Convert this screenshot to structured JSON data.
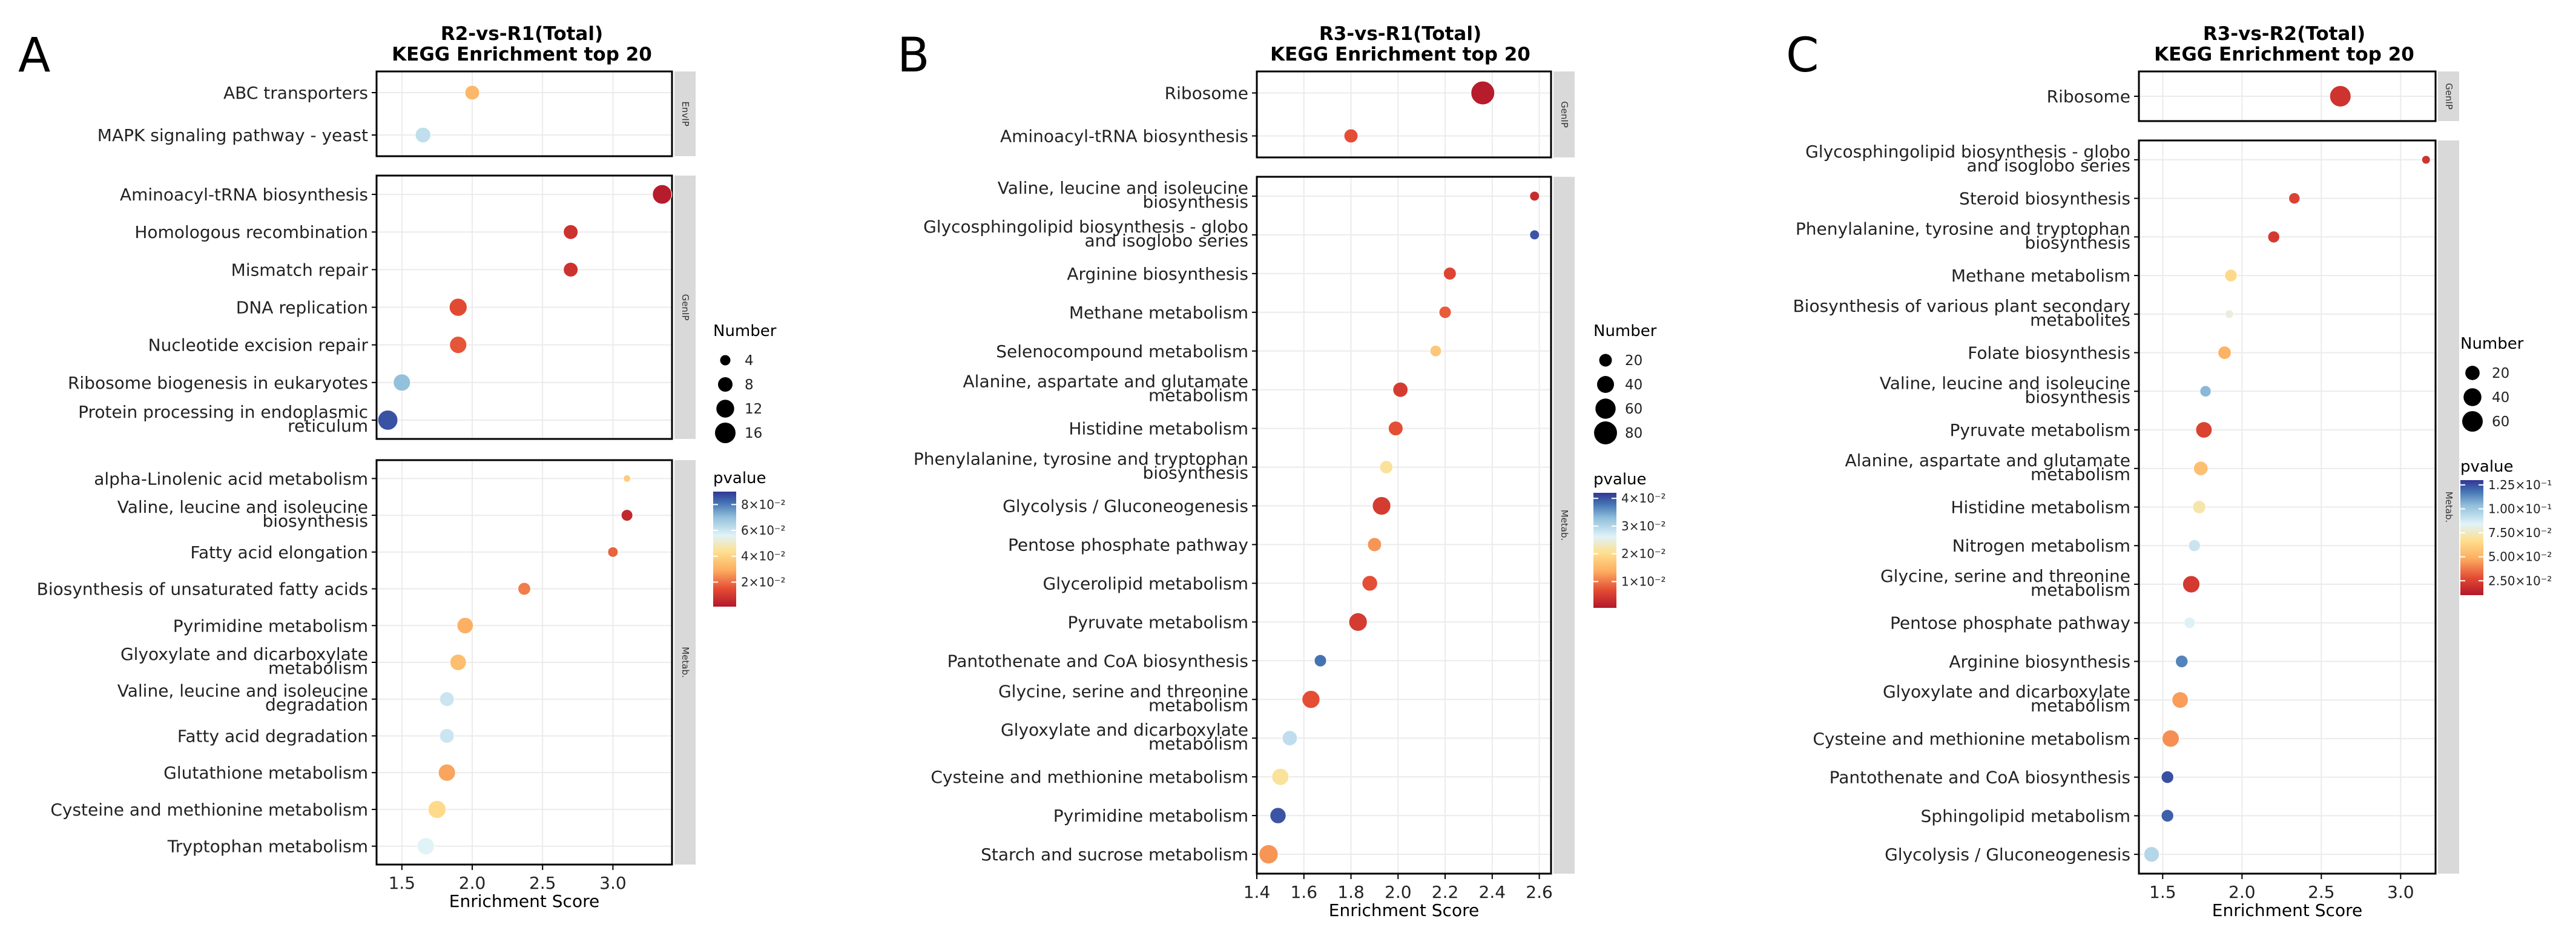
{
  "colors": {
    "panel_strip": "#d9d9d9",
    "grid": "#ebebeb",
    "axis": "#000000",
    "point_stroke": "#ffffff"
  },
  "chart_data": [
    {
      "type": "scatter",
      "panel_label": "A",
      "title": "R2-vs-R1(Total)",
      "subtitle": "KEGG Enrichment top 20",
      "xlabel": "Enrichment Score",
      "xlim": [
        1.32,
        3.42
      ],
      "x_ticks": [
        1.5,
        2.0,
        2.5,
        3.0
      ],
      "x_tick_labels": [
        "1.5",
        "2.0",
        "2.5",
        "3.0"
      ],
      "facets": [
        {
          "strip": "EnvIP",
          "terms": [
            {
              "label": [
                "ABC transporters"
              ],
              "x": 2.0,
              "number": 8,
              "pvalue": 0.032
            },
            {
              "label": [
                "MAPK signaling pathway - yeast"
              ],
              "x": 1.65,
              "number": 9,
              "pvalue": 0.062
            }
          ]
        },
        {
          "strip": "GenIP",
          "terms": [
            {
              "label": [
                "Aminoacyl-tRNA biosynthesis"
              ],
              "x": 3.35,
              "number": 14,
              "pvalue": 0.002
            },
            {
              "label": [
                "Homologous recombination"
              ],
              "x": 2.7,
              "number": 8,
              "pvalue": 0.008
            },
            {
              "label": [
                "Mismatch repair"
              ],
              "x": 2.7,
              "number": 8,
              "pvalue": 0.008
            },
            {
              "label": [
                "DNA replication"
              ],
              "x": 1.9,
              "number": 12,
              "pvalue": 0.014
            },
            {
              "label": [
                "Nucleotide excision repair"
              ],
              "x": 1.9,
              "number": 11,
              "pvalue": 0.016
            },
            {
              "label": [
                "Ribosome biogenesis in eukaryotes"
              ],
              "x": 1.5,
              "number": 11,
              "pvalue": 0.07
            },
            {
              "label": [
                "Protein processing in endoplasmic",
                "reticulum"
              ],
              "x": 1.4,
              "number": 15,
              "pvalue": 0.086
            }
          ]
        },
        {
          "strip": "Metab.",
          "terms": [
            {
              "label": [
                "alpha-Linolenic acid metabolism"
              ],
              "x": 3.1,
              "number": 2,
              "pvalue": 0.038
            },
            {
              "label": [
                "Valine, leucine and isoleucine",
                "biosynthesis"
              ],
              "x": 3.1,
              "number": 5,
              "pvalue": 0.005
            },
            {
              "label": [
                "Fatty acid elongation"
              ],
              "x": 3.0,
              "number": 4,
              "pvalue": 0.018
            },
            {
              "label": [
                "Biosynthesis of unsaturated fatty acids"
              ],
              "x": 2.37,
              "number": 6,
              "pvalue": 0.022
            },
            {
              "label": [
                "Pyrimidine metabolism"
              ],
              "x": 1.95,
              "number": 10,
              "pvalue": 0.03
            },
            {
              "label": [
                "Glyoxylate and dicarboxylate",
                "metabolism"
              ],
              "x": 1.9,
              "number": 10,
              "pvalue": 0.034
            },
            {
              "label": [
                "Valine, leucine and isoleucine",
                "degradation"
              ],
              "x": 1.82,
              "number": 8,
              "pvalue": 0.06
            },
            {
              "label": [
                "Fatty acid degradation"
              ],
              "x": 1.82,
              "number": 8,
              "pvalue": 0.06
            },
            {
              "label": [
                "Glutathione metabolism"
              ],
              "x": 1.82,
              "number": 11,
              "pvalue": 0.028
            },
            {
              "label": [
                "Cysteine and methionine metabolism"
              ],
              "x": 1.75,
              "number": 12,
              "pvalue": 0.042
            },
            {
              "label": [
                "Tryptophan metabolism"
              ],
              "x": 1.67,
              "number": 11,
              "pvalue": 0.056
            }
          ]
        }
      ],
      "size_legend": {
        "title": "Number",
        "values": [
          4,
          8,
          12,
          16
        ]
      },
      "color_legend": {
        "title": "pvalue",
        "breaks": [
          0.08,
          0.06,
          0.04,
          0.02
        ],
        "labels": [
          "8×10⁻²",
          "6×10⁻²",
          "4×10⁻²",
          "2×10⁻²"
        ],
        "min": 0.001,
        "max": 0.09
      }
    },
    {
      "type": "scatter",
      "panel_label": "B",
      "title": "R3-vs-R1(Total)",
      "subtitle": "KEGG Enrichment top 20",
      "xlabel": "Enrichment Score",
      "xlim": [
        1.4,
        2.65
      ],
      "x_ticks": [
        1.4,
        1.6,
        1.8,
        2.0,
        2.2,
        2.4,
        2.6
      ],
      "x_tick_labels": [
        "1.4",
        "1.6",
        "1.8",
        "2.0",
        "2.2",
        "2.4",
        "2.6"
      ],
      "facets": [
        {
          "strip": "GenIP",
          "terms": [
            {
              "label": [
                "Ribosome"
              ],
              "x": 2.36,
              "number": 85,
              "pvalue": 0.001
            },
            {
              "label": [
                "Aminoacyl-tRNA biosynthesis"
              ],
              "x": 1.8,
              "number": 25,
              "pvalue": 0.007
            }
          ]
        },
        {
          "strip": "Metab.",
          "terms": [
            {
              "label": [
                "Valine, leucine and isoleucine",
                "biosynthesis"
              ],
              "x": 2.58,
              "number": 10,
              "pvalue": 0.003
            },
            {
              "label": [
                "Glycosphingolipid biosynthesis - globo",
                "and isoglobo series"
              ],
              "x": 2.58,
              "number": 1,
              "pvalue": 0.04
            },
            {
              "label": [
                "Arginine biosynthesis"
              ],
              "x": 2.22,
              "number": 20,
              "pvalue": 0.006
            },
            {
              "label": [
                "Methane metabolism"
              ],
              "x": 2.2,
              "number": 18,
              "pvalue": 0.008
            },
            {
              "label": [
                "Selenocompound metabolism"
              ],
              "x": 2.16,
              "number": 15,
              "pvalue": 0.017
            },
            {
              "label": [
                "Alanine, aspartate and glutamate",
                "metabolism"
              ],
              "x": 2.01,
              "number": 30,
              "pvalue": 0.005
            },
            {
              "label": [
                "Histidine metabolism"
              ],
              "x": 1.99,
              "number": 28,
              "pvalue": 0.007
            },
            {
              "label": [
                "Phenylalanine, tyrosine and tryptophan",
                "biosynthesis"
              ],
              "x": 1.95,
              "number": 22,
              "pvalue": 0.021
            },
            {
              "label": [
                "Glycolysis / Gluconeogenesis"
              ],
              "x": 1.93,
              "number": 48,
              "pvalue": 0.005
            },
            {
              "label": [
                "Pentose phosphate pathway"
              ],
              "x": 1.9,
              "number": 25,
              "pvalue": 0.012
            },
            {
              "label": [
                "Glycerolipid metabolism"
              ],
              "x": 1.88,
              "number": 32,
              "pvalue": 0.007
            },
            {
              "label": [
                "Pyruvate metabolism"
              ],
              "x": 1.83,
              "number": 48,
              "pvalue": 0.005
            },
            {
              "label": [
                "Pantothenate and CoA biosynthesis"
              ],
              "x": 1.67,
              "number": 18,
              "pvalue": 0.038
            },
            {
              "label": [
                "Glycine, serine and threonine",
                "metabolism"
              ],
              "x": 1.63,
              "number": 45,
              "pvalue": 0.007
            },
            {
              "label": [
                "Glyoxylate and dicarboxylate",
                "metabolism"
              ],
              "x": 1.54,
              "number": 30,
              "pvalue": 0.029
            },
            {
              "label": [
                "Cysteine and methionine metabolism"
              ],
              "x": 1.5,
              "number": 40,
              "pvalue": 0.021
            },
            {
              "label": [
                "Pyrimidine metabolism"
              ],
              "x": 1.49,
              "number": 35,
              "pvalue": 0.04
            },
            {
              "label": [
                "Starch and sucrose metabolism"
              ],
              "x": 1.45,
              "number": 52,
              "pvalue": 0.012
            }
          ]
        }
      ],
      "size_legend": {
        "title": "Number",
        "values": [
          20,
          40,
          60,
          80
        ]
      },
      "color_legend": {
        "title": "pvalue",
        "breaks": [
          0.04,
          0.03,
          0.02,
          0.01
        ],
        "labels": [
          "4×10⁻²",
          "3×10⁻²",
          "2×10⁻²",
          "1×10⁻²"
        ],
        "min": 0.0005,
        "max": 0.042
      }
    },
    {
      "type": "scatter",
      "panel_label": "C",
      "title": "R3-vs-R2(Total)",
      "subtitle": "KEGG Enrichment top 20",
      "xlabel": "Enrichment Score",
      "xlim": [
        1.35,
        3.22
      ],
      "x_ticks": [
        1.5,
        2.0,
        2.5,
        3.0
      ],
      "x_tick_labels": [
        "1.5",
        "2.0",
        "2.5",
        "3.0"
      ],
      "facets": [
        {
          "strip": "GenIP",
          "terms": [
            {
              "label": [
                "Ribosome"
              ],
              "x": 2.62,
              "number": 65,
              "pvalue": 0.02
            }
          ]
        },
        {
          "strip": "Metab.",
          "terms": [
            {
              "label": [
                "Glycosphingolipid biosynthesis - globo",
                "and isoglobo series"
              ],
              "x": 3.16,
              "number": 2,
              "pvalue": 0.02
            },
            {
              "label": [
                "Steroid biosynthesis"
              ],
              "x": 2.33,
              "number": 8,
              "pvalue": 0.025
            },
            {
              "label": [
                "Phenylalanine, tyrosine and tryptophan",
                "biosynthesis"
              ],
              "x": 2.2,
              "number": 10,
              "pvalue": 0.022
            },
            {
              "label": [
                "Methane metabolism"
              ],
              "x": 1.93,
              "number": 12,
              "pvalue": 0.065
            },
            {
              "label": [
                "Biosynthesis of various plant secondary",
                "metabolites"
              ],
              "x": 1.92,
              "number": 2,
              "pvalue": 0.08
            },
            {
              "label": [
                "Folate biosynthesis"
              ],
              "x": 1.89,
              "number": 15,
              "pvalue": 0.05
            },
            {
              "label": [
                "Valine, leucine and isoleucine",
                "biosynthesis"
              ],
              "x": 1.77,
              "number": 8,
              "pvalue": 0.105
            },
            {
              "label": [
                "Pyruvate metabolism"
              ],
              "x": 1.76,
              "number": 30,
              "pvalue": 0.025
            },
            {
              "label": [
                "Alanine, aspartate and glutamate",
                "metabolism"
              ],
              "x": 1.74,
              "number": 20,
              "pvalue": 0.055
            },
            {
              "label": [
                "Histidine metabolism"
              ],
              "x": 1.73,
              "number": 15,
              "pvalue": 0.072
            },
            {
              "label": [
                "Nitrogen metabolism"
              ],
              "x": 1.7,
              "number": 10,
              "pvalue": 0.09
            },
            {
              "label": [
                "Glycine, serine and threonine",
                "metabolism"
              ],
              "x": 1.68,
              "number": 35,
              "pvalue": 0.022
            },
            {
              "label": [
                "Pentose phosphate pathway"
              ],
              "x": 1.67,
              "number": 8,
              "pvalue": 0.085
            },
            {
              "label": [
                "Arginine biosynthesis"
              ],
              "x": 1.62,
              "number": 12,
              "pvalue": 0.115
            },
            {
              "label": [
                "Glyoxylate and dicarboxylate",
                "metabolism"
              ],
              "x": 1.61,
              "number": 30,
              "pvalue": 0.045
            },
            {
              "label": [
                "Cysteine and methionine metabolism"
              ],
              "x": 1.55,
              "number": 35,
              "pvalue": 0.042
            },
            {
              "label": [
                "Pantothenate and CoA biosynthesis"
              ],
              "x": 1.53,
              "number": 12,
              "pvalue": 0.125
            },
            {
              "label": [
                "Sphingolipid metabolism"
              ],
              "x": 1.53,
              "number": 12,
              "pvalue": 0.122
            },
            {
              "label": [
                "Glycolysis / Gluconeogenesis"
              ],
              "x": 1.43,
              "number": 25,
              "pvalue": 0.095
            }
          ]
        }
      ],
      "size_legend": {
        "title": "Number",
        "values": [
          20,
          40,
          60
        ]
      },
      "color_legend": {
        "title": "pvalue",
        "breaks": [
          0.125,
          0.1,
          0.075,
          0.05,
          0.025
        ],
        "labels": [
          "1.25×10⁻¹",
          "1.00×10⁻¹",
          "7.50×10⁻²",
          "5.00×10⁻²",
          "2.50×10⁻²"
        ],
        "min": 0.01,
        "max": 0.13
      }
    }
  ]
}
